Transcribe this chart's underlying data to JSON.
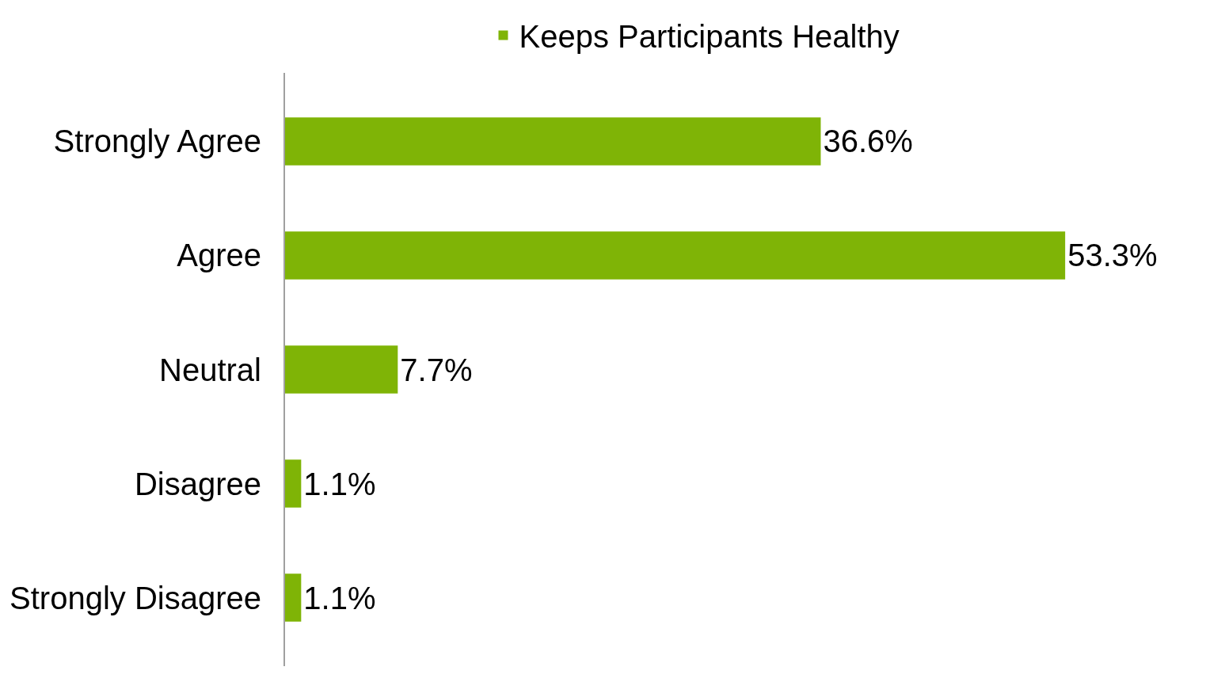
{
  "chart_data": {
    "type": "bar",
    "orientation": "horizontal",
    "categories": [
      "Strongly Agree",
      "Agree",
      "Neutral",
      "Disagree",
      "Strongly Disagree"
    ],
    "series": [
      {
        "name": "Keeps Participants Healthy",
        "color": "#7fb406",
        "values": [
          36.6,
          53.3,
          7.7,
          1.1,
          1.1
        ],
        "value_labels": [
          "36.6%",
          "53.3%",
          "7.7%",
          "1.1%",
          "1.1%"
        ]
      }
    ],
    "legend": "top"
  }
}
